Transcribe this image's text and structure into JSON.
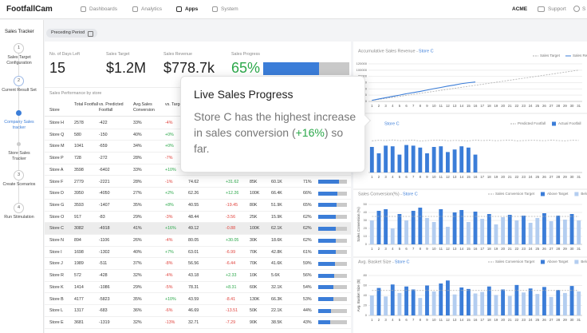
{
  "header": {
    "logo": "FootfallCam",
    "nav": [
      "Dashboards",
      "Analytics",
      "Apps",
      "System"
    ],
    "active_nav": 2,
    "account": "ACME",
    "support": "Support",
    "user": "S"
  },
  "sidebar": {
    "title": "Sales Tracker",
    "active_step": 2,
    "steps": [
      {
        "marker": "1",
        "label": "Sales Target Configuration"
      },
      {
        "marker": "2",
        "label": "Current Result Set"
      },
      {
        "marker": null,
        "label": "Company Sales tracker"
      },
      {
        "marker": null,
        "label": "Store Sales Tracker"
      },
      {
        "marker": "3",
        "label": "Create Scenarios"
      },
      {
        "marker": "4",
        "label": "Run Stimulation"
      }
    ]
  },
  "filter": "Preceding Period",
  "kpis": [
    {
      "label": "No. of Days Left",
      "value": "15"
    },
    {
      "label": "Sales Target",
      "value": "$1.2M"
    },
    {
      "label": "Sales Revenue",
      "value": "$778.7k"
    },
    {
      "label": "Sales Progress",
      "value": "65%",
      "progress": 65
    }
  ],
  "table": {
    "title": "Sales Performance by store",
    "columns": [
      "Store",
      "Total Footfall",
      "vs. Predicted Footfall",
      "Avg.Sales Conversion",
      "vs. Target"
    ],
    "selected_row": 9,
    "rows": [
      [
        "Store H",
        "2578",
        "-422",
        "33%",
        "-4%"
      ],
      [
        "Store Q",
        "580",
        "-150",
        "40%",
        "+0%"
      ],
      [
        "Store M",
        "1041",
        "-659",
        "34%",
        "+0%"
      ],
      [
        "Store P",
        "728",
        "-272",
        "28%",
        "-7%"
      ],
      [
        "Store A",
        "3598",
        "-6402",
        "33%",
        "+10%"
      ],
      [
        "Store F",
        "2779",
        "-2221",
        "28%",
        "-1%",
        "74.62",
        "+31.62",
        "85K",
        "60.1K",
        "71%"
      ],
      [
        "Store D",
        "3950",
        "-4050",
        "27%",
        "+2%",
        "62.26",
        "+12.26",
        "100K",
        "66.4K",
        "66%"
      ],
      [
        "Store G",
        "3593",
        "-1407",
        "35%",
        "+8%",
        "40.55",
        "-19.45",
        "80K",
        "51.9K",
        "65%"
      ],
      [
        "Store O",
        "917",
        "-83",
        "29%",
        "-3%",
        "48.44",
        "-3.56",
        "25K",
        "15.9K",
        "62%"
      ],
      [
        "Store C",
        "3082",
        "-4918",
        "41%",
        "+16%",
        "49.12",
        "-0.88",
        "100K",
        "62.1K",
        "62%"
      ],
      [
        "Store N",
        "894",
        "-1106",
        "26%",
        "-4%",
        "80.05",
        "+30.05",
        "30K",
        "18.6K",
        "62%"
      ],
      [
        "Store I",
        "1698",
        "-1302",
        "40%",
        "+7%",
        "63.01",
        "-6.99",
        "70K",
        "42.8K",
        "61%"
      ],
      [
        "Store J",
        "1989",
        "-511",
        "37%",
        "-8%",
        "56.56",
        "-6.44",
        "70K",
        "41.6K",
        "59%"
      ],
      [
        "Store R",
        "572",
        "-428",
        "32%",
        "-4%",
        "43.18",
        "+2.33",
        "10K",
        "5.6K",
        "56%"
      ],
      [
        "Store K",
        "1414",
        "-1086",
        "29%",
        "-5%",
        "78.31",
        "+8.31",
        "60K",
        "32.1K",
        "54%"
      ],
      [
        "Store B",
        "4177",
        "-5823",
        "35%",
        "+10%",
        "43.59",
        "-8.41",
        "130K",
        "66.3K",
        "53%"
      ],
      [
        "Store L",
        "1317",
        "-683",
        "36%",
        "-6%",
        "46.69",
        "-13.51",
        "50K",
        "22.1K",
        "44%"
      ],
      [
        "Store E",
        "3681",
        "-1319",
        "32%",
        "-13%",
        "32.71",
        "-7.29",
        "90K",
        "38.5K",
        "43%"
      ]
    ],
    "progress": [
      null,
      null,
      null,
      null,
      null,
      71,
      66,
      65,
      62,
      62,
      62,
      61,
      59,
      56,
      54,
      53,
      44,
      43
    ]
  },
  "tooltip": {
    "title": "Live Sales Progress",
    "text_before": "Store C has the highest increase in sales conversion (",
    "highlight": "+16%",
    "text_after": ") so far."
  },
  "chart_data": [
    {
      "type": "line",
      "title": "Accumulative Sales Revenue - ",
      "store": "Store C",
      "x": [
        1,
        2,
        3,
        4,
        5,
        6,
        7,
        8,
        9,
        10,
        11,
        12,
        13,
        14,
        15,
        16,
        17,
        18,
        19,
        20,
        21,
        22,
        23,
        24,
        25,
        26,
        27,
        28,
        29,
        30,
        31
      ],
      "ylim": [
        0,
        120000
      ],
      "yticks": [
        0,
        20000,
        40000,
        60000,
        80000,
        100000,
        120000
      ],
      "series": [
        {
          "name": "Sales Target",
          "color": "#b0b0b0",
          "dashed": true,
          "values": [
            3226,
            6452,
            9677,
            12903,
            16129,
            19355,
            22581,
            25806,
            29032,
            32258,
            35484,
            38710,
            41935,
            45161,
            48387,
            51613,
            54839,
            58065,
            61290,
            64516,
            67742,
            70968,
            74194,
            77419,
            80645,
            83871,
            87097,
            90323,
            93548,
            96774,
            100000
          ]
        },
        {
          "name": "Sales Revenue",
          "color": "#3b7dd8",
          "values": [
            3500,
            7800,
            11900,
            16200,
            20100,
            24600,
            28300,
            32000,
            36400,
            40800,
            44700,
            48900,
            52600,
            56800,
            59700,
            62100,
            null,
            null,
            null,
            null,
            null,
            null,
            null,
            null,
            null,
            null,
            null,
            null,
            null,
            null,
            null
          ]
        }
      ]
    },
    {
      "type": "bar",
      "store": "Store C",
      "x": [
        1,
        2,
        3,
        4,
        5,
        6,
        7,
        8,
        9,
        10,
        11,
        12,
        13,
        14,
        15,
        16,
        17,
        18,
        19,
        20,
        21,
        22,
        23,
        24,
        25,
        26,
        27,
        28,
        29,
        30,
        31
      ],
      "ylim": [
        0,
        300
      ],
      "series": [
        {
          "name": "Predicted Footfall",
          "type": "line",
          "color": "#b0b0b0",
          "dashed": true,
          "values": [
            248,
            252,
            250,
            255,
            249,
            251,
            253,
            247,
            250,
            252,
            254,
            249,
            251,
            250,
            248,
            253,
            250,
            252,
            249,
            251,
            254,
            248,
            250,
            252,
            251,
            249,
            253,
            250,
            248,
            252,
            251
          ]
        },
        {
          "name": "Actual Footfall",
          "color": "#3b7dd8",
          "values": [
            200,
            150,
            210,
            205,
            140,
            215,
            210,
            195,
            150,
            200,
            205,
            160,
            180,
            205,
            195,
            140,
            null,
            null,
            null,
            null,
            null,
            null,
            null,
            null,
            null,
            null,
            null,
            null,
            null,
            null,
            null
          ]
        }
      ]
    },
    {
      "type": "bar",
      "title": "Sales Conversion(%) - ",
      "store": "Store C",
      "y_label": "Sales Conversion (%)",
      "x": [
        1,
        2,
        3,
        4,
        5,
        6,
        7,
        8,
        9,
        10,
        11,
        12,
        13,
        14,
        15,
        16,
        17,
        18,
        19,
        20,
        21,
        22,
        23,
        24,
        25,
        26,
        27,
        28,
        29,
        30,
        31
      ],
      "ylim": [
        0,
        50
      ],
      "yticks": [
        0,
        10,
        20,
        30,
        40,
        50
      ],
      "series": [
        {
          "name": "Sales Conversion Target",
          "type": "line",
          "color": "#b0b0b0",
          "dashed": true,
          "values": [
            35,
            35,
            35,
            35,
            35,
            35,
            35,
            35,
            35,
            35,
            35,
            35,
            35,
            35,
            35,
            35,
            35,
            35,
            35,
            35,
            35,
            35,
            35,
            35,
            35,
            35,
            35,
            35,
            35,
            35,
            35
          ]
        },
        {
          "name": "Above Target",
          "color": "#3b7dd8",
          "values": [
            null,
            42,
            44,
            null,
            38,
            null,
            42,
            46,
            null,
            null,
            44,
            null,
            40,
            43,
            null,
            41,
            null,
            38,
            null,
            null,
            37,
            null,
            36,
            null,
            null,
            39,
            null,
            36,
            null,
            38,
            null
          ]
        },
        {
          "name": "Below Target",
          "color": "#b3cdf0",
          "values": [
            30,
            null,
            null,
            20,
            null,
            30,
            null,
            null,
            33,
            28,
            null,
            22,
            null,
            null,
            28,
            null,
            32,
            null,
            25,
            34,
            null,
            30,
            null,
            27,
            33,
            null,
            29,
            null,
            31,
            null,
            30
          ]
        }
      ]
    },
    {
      "type": "bar",
      "title": "Avg. Basket Size - ",
      "store": "Store C",
      "y_label": "Avg. Basket Size ($)",
      "x": [
        1,
        2,
        3,
        4,
        5,
        6,
        7,
        8,
        9,
        10,
        11,
        12,
        13,
        14,
        15,
        16,
        17,
        18,
        19,
        20,
        21,
        22,
        23,
        24,
        25,
        26,
        27,
        28,
        29,
        30,
        31
      ],
      "ylim": [
        0,
        80
      ],
      "yticks": [
        0,
        20,
        40,
        60,
        80
      ],
      "series": [
        {
          "name": "Sales Conversion Target",
          "type": "line",
          "color": "#b0b0b0",
          "dashed": true,
          "values": [
            50,
            50,
            50,
            50,
            50,
            50,
            50,
            50,
            50,
            50,
            50,
            50,
            50,
            50,
            50,
            50,
            50,
            50,
            50,
            50,
            50,
            50,
            50,
            50,
            50,
            50,
            50,
            50,
            50,
            50,
            50
          ]
        },
        {
          "name": "Above Target",
          "color": "#3b7dd8",
          "values": [
            null,
            55,
            null,
            62,
            null,
            58,
            52,
            null,
            60,
            null,
            64,
            70,
            null,
            56,
            53,
            null,
            null,
            58,
            null,
            52,
            null,
            61,
            null,
            54,
            null,
            57,
            null,
            51,
            null,
            59,
            null
          ]
        },
        {
          "name": "Below Target",
          "color": "#b3cdf0",
          "values": [
            40,
            null,
            38,
            null,
            45,
            null,
            null,
            35,
            null,
            48,
            null,
            null,
            42,
            null,
            null,
            44,
            47,
            null,
            41,
            null,
            39,
            null,
            46,
            null,
            43,
            null,
            37,
            null,
            45,
            null,
            48
          ]
        }
      ]
    }
  ]
}
